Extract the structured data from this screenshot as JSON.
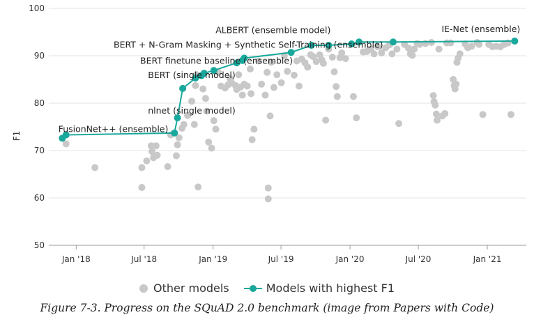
{
  "chart_data": {
    "type": "scatter",
    "title": "",
    "xlabel": "",
    "ylabel": "F1",
    "ylim": [
      50,
      100
    ],
    "y_ticks": [
      "50",
      "60",
      "70",
      "80",
      "90",
      "100"
    ],
    "x_ticks": [
      "Jan '18",
      "Jul '18",
      "Jan '19",
      "Jul '19",
      "Jan '20",
      "Jul '20",
      "Jan '21"
    ],
    "x_tick_values": [
      "2018-01-01",
      "2018-07-01",
      "2019-01-01",
      "2019-07-01",
      "2020-01-01",
      "2020-07-01",
      "2021-01-01"
    ],
    "xlim": [
      "2017-10-20",
      "2021-04-15"
    ],
    "grid": "horizontal",
    "legend_position": "bottom",
    "colors": {
      "other": "#c8c8c8",
      "best": "#19a89c"
    },
    "series": [
      {
        "name": "Other models",
        "points": [
          [
            "2017-12-05",
            71.4
          ],
          [
            "2018-02-20",
            66.4
          ],
          [
            "2018-06-25",
            62.2
          ],
          [
            "2018-06-25",
            66.4
          ],
          [
            "2018-07-08",
            67.8
          ],
          [
            "2018-07-20",
            71.0
          ],
          [
            "2018-07-22",
            69.8
          ],
          [
            "2018-07-26",
            68.5
          ],
          [
            "2018-08-02",
            71.0
          ],
          [
            "2018-08-05",
            69.0
          ],
          [
            "2018-09-02",
            66.6
          ],
          [
            "2018-09-10",
            73.3
          ],
          [
            "2018-09-25",
            68.9
          ],
          [
            "2018-09-28",
            71.2
          ],
          [
            "2018-10-02",
            72.7
          ],
          [
            "2018-10-10",
            74.7
          ],
          [
            "2018-10-15",
            75.5
          ],
          [
            "2018-10-25",
            77.4
          ],
          [
            "2018-11-05",
            80.4
          ],
          [
            "2018-11-12",
            75.5
          ],
          [
            "2018-11-15",
            83.7
          ],
          [
            "2018-11-18",
            86.0
          ],
          [
            "2018-11-22",
            62.3
          ],
          [
            "2018-12-05",
            83.0
          ],
          [
            "2018-12-12",
            81.0
          ],
          [
            "2018-12-15",
            78.3
          ],
          [
            "2018-12-20",
            71.8
          ],
          [
            "2018-12-28",
            70.5
          ],
          [
            "2019-01-03",
            76.3
          ],
          [
            "2019-01-08",
            74.5
          ],
          [
            "2019-01-15",
            86.5
          ],
          [
            "2019-01-22",
            83.6
          ],
          [
            "2019-02-02",
            83.2
          ],
          [
            "2019-02-10",
            83.9
          ],
          [
            "2019-02-15",
            85.2
          ],
          [
            "2019-02-20",
            84.2
          ],
          [
            "2019-03-02",
            83.7
          ],
          [
            "2019-03-05",
            82.9
          ],
          [
            "2019-03-10",
            86.0
          ],
          [
            "2019-03-15",
            83.4
          ],
          [
            "2019-03-20",
            81.7
          ],
          [
            "2019-03-25",
            84.0
          ],
          [
            "2019-04-02",
            83.6
          ],
          [
            "2019-04-10",
            87.2
          ],
          [
            "2019-04-12",
            82.0
          ],
          [
            "2019-04-15",
            72.3
          ],
          [
            "2019-04-20",
            74.5
          ],
          [
            "2019-05-02",
            88.9
          ],
          [
            "2019-05-10",
            84.0
          ],
          [
            "2019-05-20",
            81.7
          ],
          [
            "2019-05-25",
            86.5
          ],
          [
            "2019-05-28",
            62.1
          ],
          [
            "2019-05-28",
            59.8
          ],
          [
            "2019-06-02",
            77.3
          ],
          [
            "2019-06-05",
            88.6
          ],
          [
            "2019-06-12",
            83.3
          ],
          [
            "2019-06-20",
            86.0
          ],
          [
            "2019-07-02",
            84.3
          ],
          [
            "2019-07-10",
            90.0
          ],
          [
            "2019-07-18",
            86.7
          ],
          [
            "2019-08-05",
            85.9
          ],
          [
            "2019-08-12",
            88.9
          ],
          [
            "2019-08-18",
            83.6
          ],
          [
            "2019-08-25",
            89.3
          ],
          [
            "2019-09-03",
            88.5
          ],
          [
            "2019-09-10",
            87.6
          ],
          [
            "2019-09-18",
            90.2
          ],
          [
            "2019-09-25",
            89.8
          ],
          [
            "2019-10-03",
            88.8
          ],
          [
            "2019-10-12",
            90.2
          ],
          [
            "2019-10-18",
            89.1
          ],
          [
            "2019-10-22",
            88.4
          ],
          [
            "2019-10-28",
            76.4
          ],
          [
            "2019-11-05",
            91.4
          ],
          [
            "2019-11-15",
            89.7
          ],
          [
            "2019-11-20",
            86.6
          ],
          [
            "2019-11-25",
            83.5
          ],
          [
            "2019-11-28",
            81.4
          ],
          [
            "2019-12-05",
            89.6
          ],
          [
            "2019-12-10",
            90.6
          ],
          [
            "2019-12-20",
            89.4
          ],
          [
            "2020-01-10",
            81.4
          ],
          [
            "2020-01-18",
            76.9
          ],
          [
            "2020-02-05",
            90.8
          ],
          [
            "2020-02-15",
            90.9
          ],
          [
            "2020-02-25",
            91.4
          ],
          [
            "2020-03-05",
            90.4
          ],
          [
            "2020-03-15",
            91.9
          ],
          [
            "2020-03-25",
            90.6
          ],
          [
            "2020-04-05",
            91.7
          ],
          [
            "2020-04-15",
            92.3
          ],
          [
            "2020-04-22",
            90.4
          ],
          [
            "2020-05-05",
            91.4
          ],
          [
            "2020-05-10",
            75.7
          ],
          [
            "2020-05-25",
            92.4
          ],
          [
            "2020-06-05",
            91.6
          ],
          [
            "2020-06-10",
            90.4
          ],
          [
            "2020-06-15",
            90.1
          ],
          [
            "2020-06-20",
            91.4
          ],
          [
            "2020-06-28",
            92.6
          ],
          [
            "2020-07-05",
            92.4
          ],
          [
            "2020-07-20",
            92.6
          ],
          [
            "2020-08-05",
            92.8
          ],
          [
            "2020-08-10",
            81.6
          ],
          [
            "2020-08-12",
            80.3
          ],
          [
            "2020-08-15",
            79.6
          ],
          [
            "2020-08-18",
            77.7
          ],
          [
            "2020-08-20",
            76.4
          ],
          [
            "2020-08-25",
            91.4
          ],
          [
            "2020-09-03",
            77.3
          ],
          [
            "2020-09-10",
            77.8
          ],
          [
            "2020-09-15",
            92.7
          ],
          [
            "2020-09-25",
            92.7
          ],
          [
            "2020-10-02",
            85.0
          ],
          [
            "2020-10-05",
            83.7
          ],
          [
            "2020-10-07",
            83.0
          ],
          [
            "2020-10-10",
            84.0
          ],
          [
            "2020-10-12",
            88.6
          ],
          [
            "2020-10-15",
            89.5
          ],
          [
            "2020-10-20",
            90.4
          ],
          [
            "2020-11-03",
            92.5
          ],
          [
            "2020-11-10",
            91.7
          ],
          [
            "2020-11-20",
            92.0
          ],
          [
            "2020-12-05",
            92.8
          ],
          [
            "2020-12-10",
            92.4
          ],
          [
            "2020-12-20",
            77.6
          ],
          [
            "2021-01-05",
            92.4
          ],
          [
            "2021-01-15",
            91.9
          ],
          [
            "2021-01-25",
            92.0
          ],
          [
            "2021-02-05",
            91.9
          ],
          [
            "2021-02-15",
            92.4
          ],
          [
            "2021-02-25",
            92.7
          ],
          [
            "2021-03-05",
            77.6
          ]
        ]
      },
      {
        "name": "Models with highest F1",
        "points": [
          [
            "2017-11-25",
            72.6
          ],
          [
            "2017-12-05",
            73.3
          ],
          [
            "2018-09-20",
            73.7
          ],
          [
            "2018-09-28",
            76.9
          ],
          [
            "2018-10-12",
            83.1
          ],
          [
            "2018-11-15",
            85.3
          ],
          [
            "2018-12-01",
            85.8
          ],
          [
            "2018-12-08",
            86.3
          ],
          [
            "2019-01-03",
            86.9
          ],
          [
            "2019-03-05",
            88.5
          ],
          [
            "2019-03-20",
            89.0
          ],
          [
            "2019-03-25",
            89.5
          ],
          [
            "2019-07-28",
            90.7
          ],
          [
            "2019-09-20",
            92.2
          ],
          [
            "2019-11-05",
            92.2
          ],
          [
            "2020-01-05",
            92.5
          ],
          [
            "2020-01-25",
            92.9
          ],
          [
            "2020-04-25",
            92.9
          ],
          [
            "2021-03-15",
            93.1
          ]
        ]
      }
    ],
    "annotations": [
      {
        "text": "ALBERT (ensemble model)",
        "x": "2019-06-10",
        "y": 94.8
      },
      {
        "text": "IE-Net (ensemble)",
        "x": "2020-12-15",
        "y": 95.0
      },
      {
        "text": "BERT + N-Gram Masking + Synthetic Self-Training (ensemble)",
        "x": "2019-04-05",
        "y": 91.7
      },
      {
        "text": "BERT finetune baseline (ensemble)",
        "x": "2019-01-10",
        "y": 88.3
      },
      {
        "text": "BERT (single model)",
        "x": "2018-11-05",
        "y": 85.3
      },
      {
        "text": "nlnet (single model)",
        "x": "2018-11-05",
        "y": 77.8
      },
      {
        "text": "FusionNet++ (ensemble)",
        "x": "2018-04-10",
        "y": 73.9
      }
    ]
  },
  "legend": {
    "other_label": "Other models",
    "best_label": "Models with highest F1"
  },
  "caption": "Figure 7-3. Progress on the SQuAD 2.0 benchmark (image from Papers with Code)"
}
